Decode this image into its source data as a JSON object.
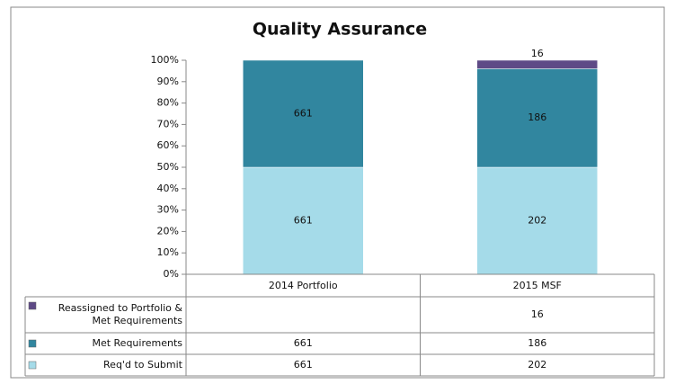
{
  "chart_data": {
    "type": "bar",
    "stacking": "percent",
    "title": "Quality Assurance",
    "categories": [
      "2014 Portfolio",
      "2015 MSF"
    ],
    "series": [
      {
        "name": "Req'd to Submit",
        "color": "#a5dbe9",
        "values": [
          661,
          202
        ]
      },
      {
        "name": "Met Requirements",
        "color": "#31869f",
        "values": [
          661,
          186
        ]
      },
      {
        "name": "Reassigned to Portfolio & Met Requirements",
        "color": "#5e4a86",
        "values": [
          null,
          16
        ]
      }
    ],
    "ylim": [
      0,
      100
    ],
    "yticks": [
      {
        "value": 0,
        "label": "0%"
      },
      {
        "value": 10,
        "label": "10%"
      },
      {
        "value": 20,
        "label": "20%"
      },
      {
        "value": 30,
        "label": "30%"
      },
      {
        "value": 40,
        "label": "40%"
      },
      {
        "value": 50,
        "label": "50%"
      },
      {
        "value": 60,
        "label": "60%"
      },
      {
        "value": 70,
        "label": "70%"
      },
      {
        "value": 80,
        "label": "80%"
      },
      {
        "value": 90,
        "label": "90%"
      },
      {
        "value": 100,
        "label": "100%"
      }
    ],
    "grid": false,
    "data_table": true
  }
}
